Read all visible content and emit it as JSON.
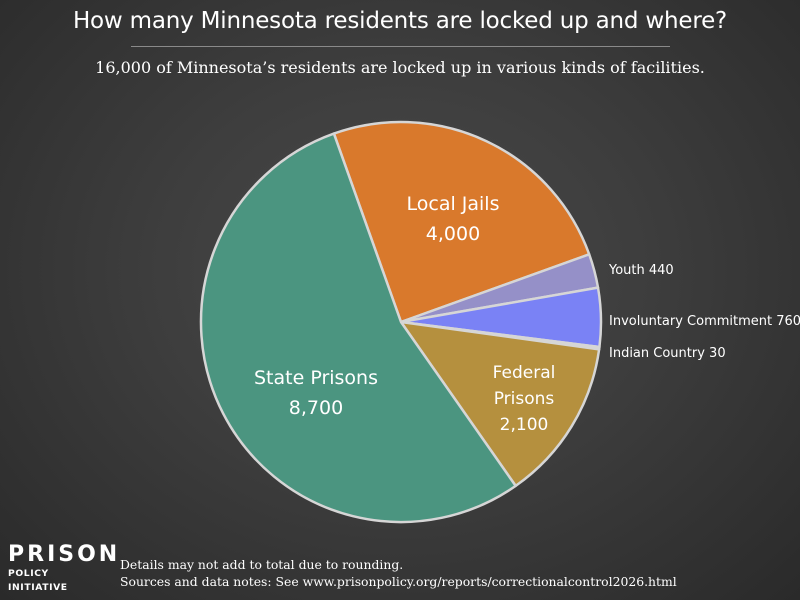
{
  "title": "How many Minnesota residents are locked up and where?",
  "subtitle": "16,000 of Minnesota’s residents are locked up in various kinds of facilities.",
  "chart_data": {
    "type": "pie",
    "total": 16000,
    "slices": [
      {
        "id": "local-jails",
        "label_lines": [
          "Local Jails",
          "4,000"
        ],
        "value": 4000,
        "color": "#d9792c",
        "label_inside": true
      },
      {
        "id": "youth",
        "label_lines": [
          "Youth 440"
        ],
        "value": 440,
        "color": "#9590c8",
        "label_inside": false
      },
      {
        "id": "involuntary-commitment",
        "label_lines": [
          "Involuntary Commitment 760"
        ],
        "value": 760,
        "color": "#7a82f5",
        "label_inside": false
      },
      {
        "id": "indian-country",
        "label_lines": [
          "Indian Country 30"
        ],
        "value": 30,
        "color": "#9fb0ee",
        "label_inside": false
      },
      {
        "id": "federal-prisons",
        "label_lines": [
          "Federal",
          "Prisons",
          "2,100"
        ],
        "value": 2100,
        "color": "#b5903e",
        "label_inside": true
      },
      {
        "id": "state-prisons",
        "label_lines": [
          "State Prisons",
          "8,700"
        ],
        "value": 8700,
        "color": "#4b9580",
        "label_inside": true
      }
    ]
  },
  "logo": {
    "top": "PRISON",
    "bottom": "POLICY INITIATIVE"
  },
  "footnotes": {
    "line1": "Details may not add to total due to rounding.",
    "line2": "Sources and data notes: See www.prisonpolicy.org/reports/correctionalcontrol2026.html"
  }
}
